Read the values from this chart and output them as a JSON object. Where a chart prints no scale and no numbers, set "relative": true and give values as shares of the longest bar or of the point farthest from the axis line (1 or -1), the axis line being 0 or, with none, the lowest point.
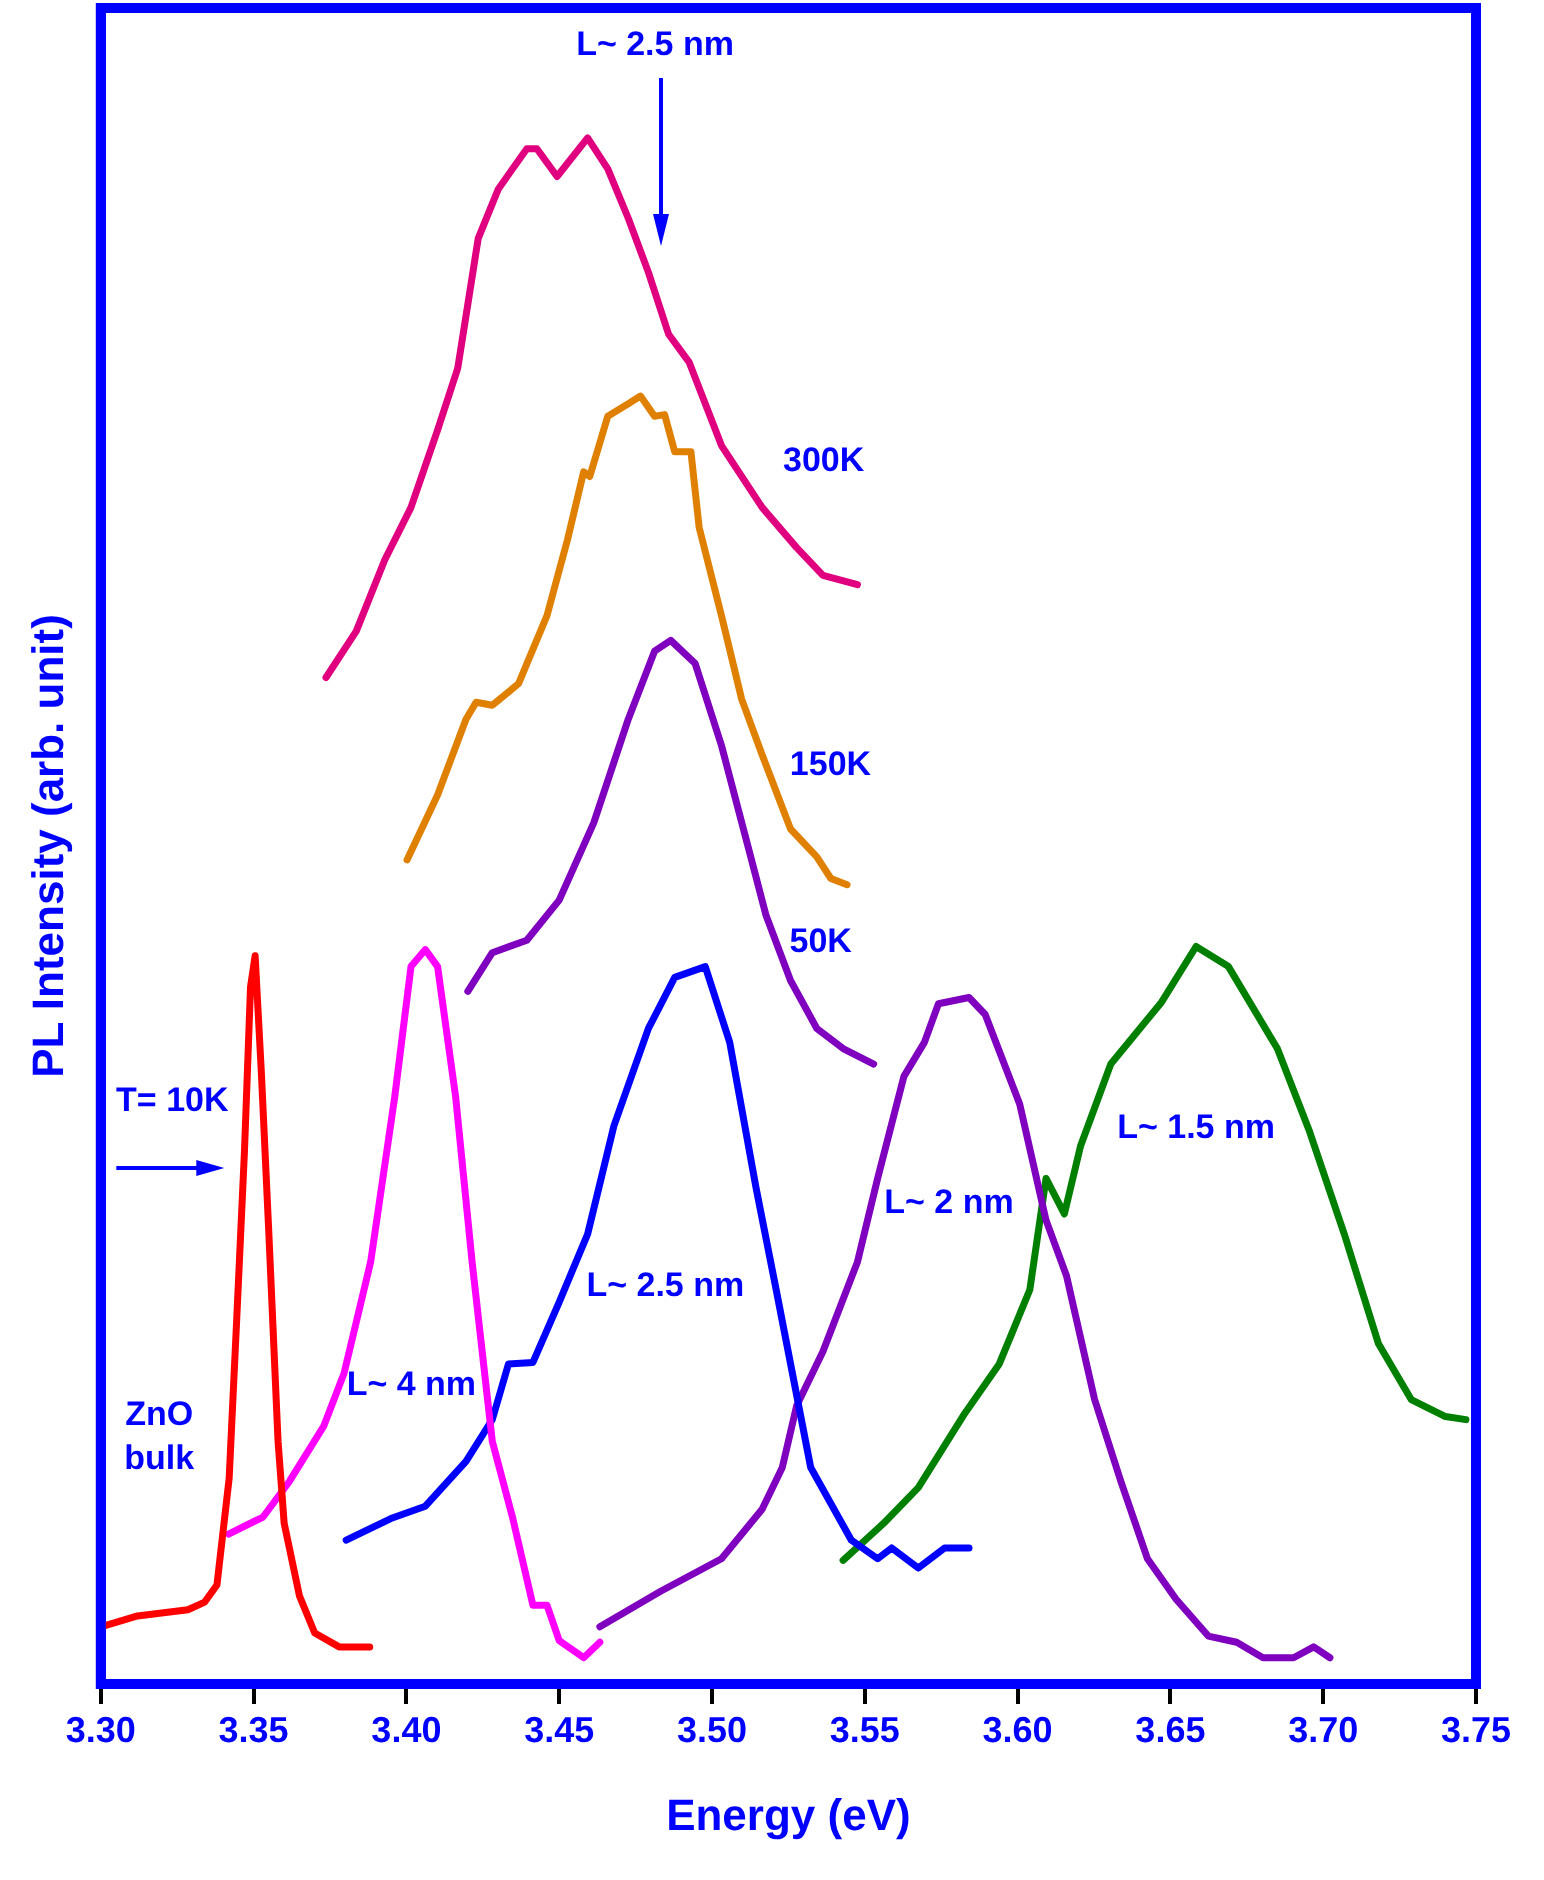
{
  "chart_data": {
    "type": "line",
    "relative": true,
    "xlabel": "Energy (eV)",
    "ylabel": "PL Intensity (arb. unit)",
    "xlim": [
      3.3,
      3.75
    ],
    "xticks": [
      {
        "value": 3.3,
        "label": "3.30"
      },
      {
        "value": 3.35,
        "label": "3.35"
      },
      {
        "value": 3.4,
        "label": "3.40"
      },
      {
        "value": 3.45,
        "label": "3.45"
      },
      {
        "value": 3.5,
        "label": "3.50"
      },
      {
        "value": 3.55,
        "label": "3.55"
      },
      {
        "value": 3.6,
        "label": "3.60"
      },
      {
        "value": 3.65,
        "label": "3.65"
      },
      {
        "value": 3.7,
        "label": "3.70"
      },
      {
        "value": 3.75,
        "label": "3.75"
      }
    ],
    "grid": false,
    "legend": false,
    "marker": "none",
    "line_style": "solid",
    "series": [
      {
        "name": "ZnO bulk",
        "color": "#ff0000",
        "x": [
          3.3,
          3.312,
          3.3285,
          3.334,
          3.338,
          3.342,
          3.3445,
          3.347,
          3.349,
          3.3505,
          3.3525,
          3.355,
          3.358,
          3.36,
          3.365,
          3.37,
          3.378,
          3.388
        ],
        "values": [
          0.037,
          0.044,
          0.048,
          0.053,
          0.064,
          0.133,
          0.237,
          0.344,
          0.451,
          0.471,
          0.397,
          0.291,
          0.157,
          0.104,
          0.057,
          0.033,
          0.024,
          0.024
        ]
      },
      {
        "name": "L~ 4 nm",
        "color": "#ff00ff",
        "x": [
          3.3418,
          3.3531,
          3.3617,
          3.373,
          3.3796,
          3.3883,
          3.3962,
          3.4015,
          3.4062,
          3.4102,
          3.4161,
          3.4215,
          3.4281,
          3.4347,
          3.4414,
          3.446,
          3.45,
          3.458,
          3.4633
        ],
        "values": [
          0.097,
          0.108,
          0.131,
          0.167,
          0.201,
          0.273,
          0.38,
          0.464,
          0.475,
          0.464,
          0.38,
          0.273,
          0.157,
          0.108,
          0.051,
          0.051,
          0.028,
          0.017,
          0.027
        ]
      },
      {
        "name": "L~ 2.5 nm",
        "color": "#0000ff",
        "x": [
          3.3803,
          3.3949,
          3.4062,
          3.4195,
          3.4281,
          3.4334,
          3.4414,
          3.45,
          3.4593,
          3.4679,
          3.4792,
          3.4878,
          3.4978,
          3.5058,
          3.5144,
          3.521,
          3.5323,
          3.5456,
          3.5542,
          3.5588,
          3.5675,
          3.5761,
          3.5841
        ],
        "values": [
          0.093,
          0.107,
          0.115,
          0.144,
          0.171,
          0.207,
          0.208,
          0.247,
          0.291,
          0.361,
          0.424,
          0.457,
          0.464,
          0.415,
          0.321,
          0.255,
          0.14,
          0.093,
          0.081,
          0.088,
          0.075,
          0.088,
          0.088
        ]
      },
      {
        "name": "L~ 2 nm",
        "color": "#7f00bf",
        "x": [
          3.4633,
          3.4832,
          3.5031,
          3.5164,
          3.523,
          3.5277,
          3.5363,
          3.5476,
          3.5542,
          3.5628,
          3.5695,
          3.5741,
          3.5841,
          3.5894,
          3.6007,
          3.6093,
          3.616,
          3.6252,
          3.6338,
          3.6425,
          3.6518,
          3.6624,
          3.6717,
          3.6803,
          3.6903,
          3.6969,
          3.7022
        ],
        "values": [
          0.037,
          0.06,
          0.081,
          0.113,
          0.14,
          0.18,
          0.215,
          0.273,
          0.327,
          0.393,
          0.415,
          0.44,
          0.444,
          0.433,
          0.375,
          0.3,
          0.264,
          0.184,
          0.131,
          0.081,
          0.055,
          0.031,
          0.027,
          0.017,
          0.017,
          0.024,
          0.017
        ]
      },
      {
        "name": "L~ 1.5 nm",
        "color": "#007f00",
        "x": [
          3.5429,
          3.5562,
          3.5675,
          3.5827,
          3.594,
          3.604,
          3.6093,
          3.6153,
          3.6206,
          3.6305,
          3.6471,
          3.6584,
          3.669,
          3.685,
          3.6956,
          3.7069,
          3.7181,
          3.7288,
          3.74,
          3.7467
        ],
        "values": [
          0.08,
          0.104,
          0.127,
          0.175,
          0.207,
          0.255,
          0.327,
          0.304,
          0.348,
          0.401,
          0.441,
          0.477,
          0.464,
          0.411,
          0.357,
          0.291,
          0.22,
          0.184,
          0.173,
          0.171
        ]
      },
      {
        "name": "50K",
        "color": "#7f00bf",
        "x": [
          3.4201,
          3.4281,
          3.4394,
          3.45,
          3.4613,
          3.4726,
          3.4812,
          3.4865,
          3.4945,
          3.5031,
          3.5124,
          3.5177,
          3.5257,
          3.5343,
          3.5429,
          3.5529
        ],
        "values": [
          0.448,
          0.473,
          0.481,
          0.507,
          0.557,
          0.624,
          0.668,
          0.675,
          0.66,
          0.607,
          0.537,
          0.497,
          0.455,
          0.424,
          0.411,
          0.401
        ]
      },
      {
        "name": "150K",
        "color": "#e08000",
        "x": [
          3.4002,
          3.4102,
          3.4195,
          3.4228,
          3.4281,
          3.4367,
          3.446,
          3.4527,
          3.458,
          3.46,
          3.4659,
          3.4726,
          3.4766,
          3.4812,
          3.4845,
          3.4878,
          3.4931,
          3.4958,
          3.5031,
          3.5097,
          3.5164,
          3.5257,
          3.5343,
          3.5389,
          3.5442
        ],
        "values": [
          0.533,
          0.575,
          0.624,
          0.635,
          0.633,
          0.647,
          0.691,
          0.74,
          0.784,
          0.781,
          0.82,
          0.828,
          0.833,
          0.82,
          0.821,
          0.797,
          0.797,
          0.748,
          0.691,
          0.637,
          0.601,
          0.553,
          0.535,
          0.521,
          0.517
        ]
      },
      {
        "name": "300K",
        "color": "#e0007f",
        "x": [
          3.3737,
          3.3836,
          3.3929,
          3.4015,
          3.4102,
          3.4168,
          3.4235,
          3.4301,
          3.4394,
          3.4427,
          3.4493,
          3.4593,
          3.4659,
          3.4726,
          3.4792,
          3.4858,
          3.4925,
          3.5031,
          3.5164,
          3.5277,
          3.5363,
          3.5476
        ],
        "values": [
          0.651,
          0.681,
          0.727,
          0.761,
          0.811,
          0.851,
          0.935,
          0.967,
          0.993,
          0.993,
          0.975,
          1,
          0.98,
          0.948,
          0.913,
          0.873,
          0.855,
          0.801,
          0.761,
          0.735,
          0.717,
          0.711
        ]
      }
    ],
    "annotations": [
      "L~ 2.5 nm",
      "T= 10K"
    ]
  }
}
